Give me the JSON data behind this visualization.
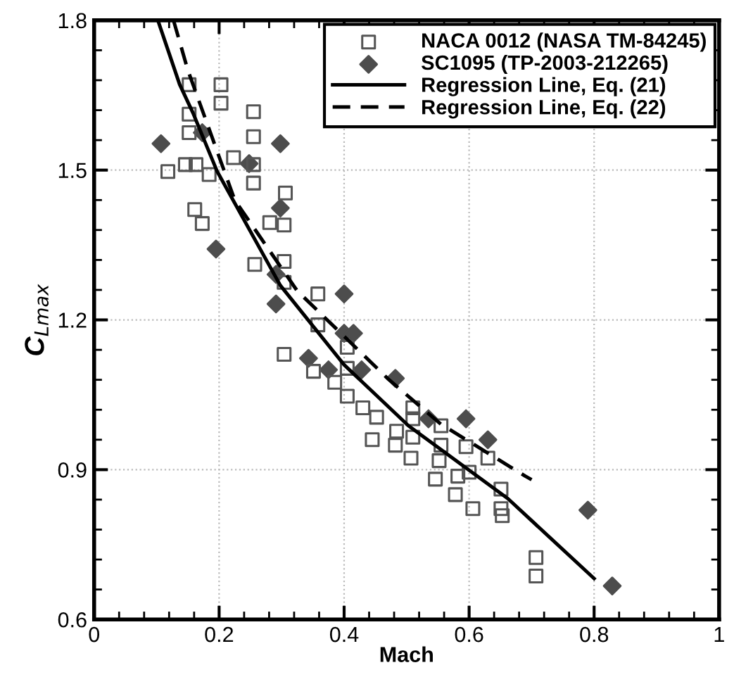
{
  "chart_data": {
    "type": "scatter",
    "xlabel": "Mach",
    "ylabel": "C$_{Lmax}$",
    "xlim": [
      0,
      1
    ],
    "ylim": [
      0.6,
      1.8
    ],
    "xticks": [
      0,
      0.2,
      0.4,
      0.6,
      0.8,
      1
    ],
    "yticks": [
      0.6,
      0.9,
      1.2,
      1.5,
      1.8
    ],
    "grid": true,
    "legend": "top right",
    "series": [
      {
        "name": "NACA 0012 (NASA TM-84245)",
        "marker": "square",
        "color": "#555555",
        "x": [
          0.152,
          0.203,
          0.203,
          0.152,
          0.255,
          0.152,
          0.255,
          0.118,
          0.146,
          0.163,
          0.184,
          0.223,
          0.255,
          0.255,
          0.306,
          0.161,
          0.173,
          0.281,
          0.304,
          0.257,
          0.304,
          0.304,
          0.358,
          0.358,
          0.304,
          0.405,
          0.351,
          0.405,
          0.385,
          0.405,
          0.43,
          0.452,
          0.51,
          0.51,
          0.484,
          0.445,
          0.482,
          0.51,
          0.507,
          0.555,
          0.555,
          0.552,
          0.546,
          0.595,
          0.582,
          0.6,
          0.578,
          0.63,
          0.606,
          0.651,
          0.651,
          0.653,
          0.707,
          0.707
        ],
        "values": [
          1.671,
          1.671,
          1.634,
          1.612,
          1.617,
          1.575,
          1.567,
          1.497,
          1.511,
          1.511,
          1.491,
          1.525,
          1.511,
          1.474,
          1.454,
          1.421,
          1.393,
          1.395,
          1.39,
          1.311,
          1.317,
          1.275,
          1.252,
          1.19,
          1.131,
          1.145,
          1.097,
          1.103,
          1.075,
          1.047,
          1.024,
          1.005,
          1.024,
          1.002,
          0.977,
          0.96,
          0.949,
          0.965,
          0.923,
          0.988,
          0.949,
          0.918,
          0.881,
          0.946,
          0.887,
          0.895,
          0.85,
          0.923,
          0.822,
          0.861,
          0.822,
          0.808,
          0.724,
          0.687
        ]
      },
      {
        "name": "SC1095 (TP-2003-212265)",
        "marker": "diamond",
        "color": "#4d4d4d",
        "x": [
          0.107,
          0.173,
          0.298,
          0.248,
          0.298,
          0.195,
          0.291,
          0.291,
          0.4,
          0.4,
          0.415,
          0.343,
          0.375,
          0.428,
          0.482,
          0.535,
          0.595,
          0.63,
          0.79,
          0.829
        ],
        "values": [
          1.553,
          1.575,
          1.553,
          1.513,
          1.424,
          1.342,
          1.291,
          1.232,
          1.252,
          1.173,
          1.173,
          1.123,
          1.1,
          1.1,
          1.083,
          1.002,
          1.002,
          0.96,
          0.819,
          0.667
        ]
      },
      {
        "name": "Regression Line, Eq. (21)",
        "type": "line",
        "line_style": "solid",
        "color": "#000000",
        "x": [
          0.102,
          0.137,
          0.158,
          0.197,
          0.298,
          0.4,
          0.503,
          0.662,
          0.8
        ],
        "values": [
          1.8,
          1.671,
          1.615,
          1.497,
          1.269,
          1.11,
          0.988,
          0.842,
          0.682
        ]
      },
      {
        "name": "Regression Line, Eq. (22)",
        "type": "line",
        "line_style": "dashed",
        "color": "#000000",
        "x": [
          0.127,
          0.15,
          0.225,
          0.325,
          0.471,
          0.555,
          0.69,
          0.7
        ],
        "values": [
          1.8,
          1.7,
          1.44,
          1.258,
          1.081,
          0.991,
          0.887,
          0.88
        ]
      }
    ]
  }
}
